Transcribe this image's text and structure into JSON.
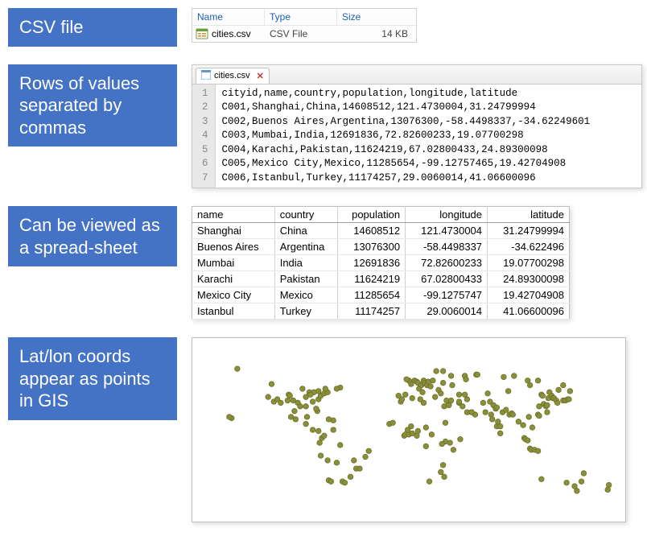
{
  "labels": {
    "csv_file": "CSV file",
    "rows_csv": "Rows of values separated by commas",
    "spreadsheet": "Can be viewed as a spread-sheet",
    "gis": "Lat/lon coords appear as points in GIS"
  },
  "file_listing": {
    "headers": {
      "name": "Name",
      "type": "Type",
      "size": "Size"
    },
    "row": {
      "name": "cities.csv",
      "type": "CSV File",
      "size": "14 KB"
    }
  },
  "editor": {
    "tab_label": "cities.csv",
    "lines": [
      "cityid,name,country,population,longitude,latitude",
      "C001,Shanghai,China,14608512,121.4730004,31.24799994",
      "C002,Buenos Aires,Argentina,13076300,-58.4498337,-34.62249601",
      "C003,Mumbai,India,12691836,72.82600233,19.07700298",
      "C004,Karachi,Pakistan,11624219,67.02800433,24.89300098",
      "C005,Mexico City,Mexico,11285654,-99.12757465,19.42704908",
      "C006,Istanbul,Turkey,11174257,29.0060014,41.06600096"
    ]
  },
  "spreadsheet": {
    "columns": [
      {
        "key": "name",
        "label": "name",
        "align": "left"
      },
      {
        "key": "country",
        "label": "country",
        "align": "left"
      },
      {
        "key": "population",
        "label": "population",
        "align": "right"
      },
      {
        "key": "longitude",
        "label": "longitude",
        "align": "right"
      },
      {
        "key": "latitude",
        "label": "latitude",
        "align": "right"
      }
    ],
    "rows": [
      [
        "Shanghai",
        "China",
        "14608512",
        "121.4730004",
        "31.24799994"
      ],
      [
        "Buenos Aires",
        "Argentina",
        "13076300",
        "-58.4498337",
        "-34.622496"
      ],
      [
        "Mumbai",
        "India",
        "12691836",
        "72.82600233",
        "19.07700298"
      ],
      [
        "Karachi",
        "Pakistan",
        "11624219",
        "67.02800433",
        "24.89300098"
      ],
      [
        "Mexico City",
        "Mexico",
        "11285654",
        "-99.1275747",
        "19.42704908"
      ],
      [
        "Istanbul",
        "Turkey",
        "11174257",
        "29.0060014",
        "41.06600096"
      ]
    ]
  },
  "map": {
    "type": "scatter",
    "background_color": "#ffffff",
    "point_fill": "#8a8f3a",
    "point_stroke": "#6b7028",
    "point_radius": 3.3,
    "xlim": [
      -180,
      180
    ],
    "ylim": [
      -60,
      80
    ],
    "points": [
      [
        -155,
        20
      ],
      [
        -150,
        62
      ],
      [
        -120,
        49
      ],
      [
        -123,
        38
      ],
      [
        -118,
        34
      ],
      [
        -112,
        33
      ],
      [
        -115,
        36
      ],
      [
        -105,
        40
      ],
      [
        -97,
        33
      ],
      [
        -95,
        30
      ],
      [
        -90,
        30
      ],
      [
        -87,
        42
      ],
      [
        -84,
        34
      ],
      [
        -80,
        26
      ],
      [
        -81,
        28
      ],
      [
        -79,
        36
      ],
      [
        -77,
        39
      ],
      [
        -74,
        41
      ],
      [
        -71,
        42
      ],
      [
        -73,
        45
      ],
      [
        -79,
        43
      ],
      [
        -83,
        42
      ],
      [
        -93,
        45
      ],
      [
        -104,
        39
      ],
      [
        -106,
        35
      ],
      [
        -101,
        35
      ],
      [
        -90,
        38
      ],
      [
        -86,
        40
      ],
      [
        -99,
        19
      ],
      [
        -103,
        21
      ],
      [
        -100,
        26
      ],
      [
        -89,
        21
      ],
      [
        -90,
        15
      ],
      [
        -84,
        10
      ],
      [
        -79,
        9
      ],
      [
        -76,
        3
      ],
      [
        -74,
        5
      ],
      [
        -70,
        -33
      ],
      [
        -68,
        -34
      ],
      [
        -66,
        10
      ],
      [
        -63,
        -18
      ],
      [
        -58,
        -34
      ],
      [
        -56,
        -35
      ],
      [
        -51,
        -30
      ],
      [
        -48,
        -16
      ],
      [
        -46,
        -23
      ],
      [
        -43,
        -23
      ],
      [
        -38,
        -13
      ],
      [
        -35,
        -8
      ],
      [
        -60,
        -3
      ],
      [
        -78,
        -1
      ],
      [
        -77,
        -12
      ],
      [
        -71,
        -16
      ],
      [
        -17,
        15
      ],
      [
        -7,
        34
      ],
      [
        -6,
        36
      ],
      [
        -4,
        5
      ],
      [
        -3,
        6
      ],
      [
        0,
        6
      ],
      [
        3,
        7
      ],
      [
        3,
        37
      ],
      [
        7,
        5
      ],
      [
        8,
        9
      ],
      [
        10,
        36
      ],
      [
        13,
        33
      ],
      [
        15,
        -4
      ],
      [
        18,
        -34
      ],
      [
        28,
        -26
      ],
      [
        31,
        -30
      ],
      [
        31,
        30
      ],
      [
        32,
        0
      ],
      [
        32,
        16
      ],
      [
        35,
        32
      ],
      [
        36,
        -1
      ],
      [
        39,
        -7
      ],
      [
        44,
        33
      ],
      [
        47,
        30
      ],
      [
        51,
        25
      ],
      [
        55,
        25
      ],
      [
        58,
        23
      ],
      [
        45,
        2
      ],
      [
        2,
        49
      ],
      [
        0,
        52
      ],
      [
        -3,
        40
      ],
      [
        -9,
        39
      ],
      [
        -2,
        53
      ],
      [
        5,
        52
      ],
      [
        7,
        51
      ],
      [
        8,
        50
      ],
      [
        9,
        45
      ],
      [
        11,
        48
      ],
      [
        12,
        42
      ],
      [
        13,
        52
      ],
      [
        14,
        50
      ],
      [
        16,
        48
      ],
      [
        17,
        51
      ],
      [
        19,
        47
      ],
      [
        21,
        52
      ],
      [
        23,
        38
      ],
      [
        24,
        60
      ],
      [
        26,
        44
      ],
      [
        28,
        41
      ],
      [
        30,
        50
      ],
      [
        30,
        60
      ],
      [
        33,
        35
      ],
      [
        37,
        56
      ],
      [
        38,
        48
      ],
      [
        44,
        40
      ],
      [
        49,
        56
      ],
      [
        50,
        53
      ],
      [
        51,
        36
      ],
      [
        55,
        25
      ],
      [
        59,
        57
      ],
      [
        60,
        57
      ],
      [
        67,
        25
      ],
      [
        69,
        41
      ],
      [
        72,
        23
      ],
      [
        73,
        19
      ],
      [
        74,
        31
      ],
      [
        76,
        28
      ],
      [
        77,
        13
      ],
      [
        77,
        29
      ],
      [
        78,
        17
      ],
      [
        80,
        13
      ],
      [
        80,
        7
      ],
      [
        82,
        25
      ],
      [
        85,
        27
      ],
      [
        88,
        23
      ],
      [
        90,
        24
      ],
      [
        91,
        23
      ],
      [
        96,
        17
      ],
      [
        100,
        14
      ],
      [
        101,
        3
      ],
      [
        102,
        2
      ],
      [
        104,
        1
      ],
      [
        105,
        21
      ],
      [
        106,
        -6
      ],
      [
        107,
        -7
      ],
      [
        108,
        12
      ],
      [
        110,
        -7
      ],
      [
        113,
        -8
      ],
      [
        113,
        23
      ],
      [
        114,
        22
      ],
      [
        114,
        30
      ],
      [
        116,
        40
      ],
      [
        117,
        39
      ],
      [
        118,
        32
      ],
      [
        120,
        30
      ],
      [
        121,
        31
      ],
      [
        121,
        25
      ],
      [
        122,
        37
      ],
      [
        123,
        42
      ],
      [
        125,
        39
      ],
      [
        126,
        37
      ],
      [
        127,
        37
      ],
      [
        129,
        35
      ],
      [
        130,
        33
      ],
      [
        135,
        35
      ],
      [
        137,
        35
      ],
      [
        139,
        36
      ],
      [
        140,
        36
      ],
      [
        141,
        43
      ],
      [
        145,
        -38
      ],
      [
        147,
        -42
      ],
      [
        151,
        -34
      ],
      [
        153,
        -27
      ],
      [
        116,
        -32
      ],
      [
        138,
        -35
      ],
      [
        175,
        -37
      ],
      [
        174,
        -41
      ],
      [
        -157,
        21
      ],
      [
        49,
        40
      ],
      [
        44,
        34
      ],
      [
        35,
        31
      ],
      [
        37,
        35
      ],
      [
        65,
        33
      ],
      [
        71,
        34
      ],
      [
        83,
        55
      ],
      [
        87,
        43
      ],
      [
        92,
        56
      ],
      [
        104,
        52
      ],
      [
        106,
        48
      ],
      [
        113,
        52
      ],
      [
        131,
        44
      ],
      [
        135,
        48
      ],
      [
        30,
        -20
      ],
      [
        -1,
        10
      ],
      [
        2,
        13
      ],
      [
        -14,
        16
      ],
      [
        15,
        12
      ],
      [
        20,
        6
      ],
      [
        29,
        -2
      ],
      [
        -60,
        46
      ],
      [
        -63,
        45
      ],
      [
        -66,
        18
      ],
      [
        -70,
        19
      ]
    ]
  },
  "colors": {
    "label_bg": "#4472c4",
    "label_text": "#ffffff",
    "header_link": "#1a5fb4"
  }
}
